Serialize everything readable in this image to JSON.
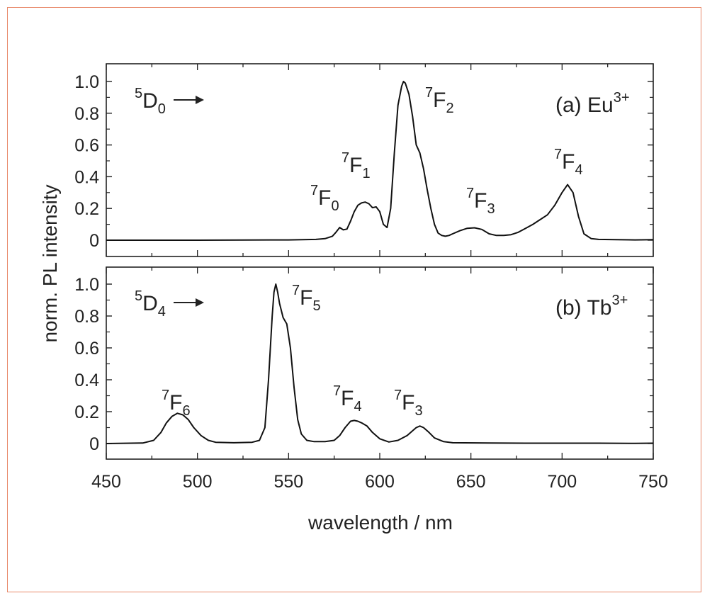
{
  "colors": {
    "frame": "#e8896a",
    "line": "#111111"
  },
  "chart_data": {
    "type": "line",
    "xlabel": "wavelength / nm",
    "ylabel": "norm. PL intensity",
    "xlim": [
      450,
      750
    ],
    "x_ticks": [
      "450",
      "500",
      "550",
      "600",
      "650",
      "700",
      "750"
    ],
    "grid": false,
    "panels": [
      {
        "id": "a",
        "label": {
          "prefix": "(a) Eu",
          "sup": "3+"
        },
        "start": {
          "sup": "5",
          "base": "D",
          "sub": "0"
        },
        "ylim": [
          0,
          1.0
        ],
        "y_ticks": [
          "0",
          "0.2",
          "0.4",
          "0.6",
          "0.8",
          "1.0"
        ],
        "transitions": [
          {
            "sup": "7",
            "base": "F",
            "sub": "0",
            "x": 578,
            "y": 0.08
          },
          {
            "sup": "7",
            "base": "F",
            "sub": "1",
            "x": 592,
            "y": 0.24
          },
          {
            "sup": "7",
            "base": "F",
            "sub": "2",
            "x": 613,
            "y": 1.0
          },
          {
            "sup": "7",
            "base": "F",
            "sub": "3",
            "x": 653,
            "y": 0.08
          },
          {
            "sup": "7",
            "base": "F",
            "sub": "4",
            "x": 703,
            "y": 0.35
          }
        ],
        "series": [
          {
            "x": [
              450,
              500,
              550,
              565,
              570,
              574,
              576,
              578,
              580,
              582,
              584,
              586,
              588,
              590,
              592,
              594,
              596,
              598,
              600,
              602,
              604,
              606,
              608,
              610,
              612,
              613,
              614,
              616,
              618,
              620,
              622,
              624,
              626,
              628,
              630,
              632,
              634,
              636,
              638,
              640,
              644,
              648,
              652,
              656,
              660,
              664,
              668,
              672,
              676,
              680,
              684,
              688,
              692,
              696,
              700,
              703,
              706,
              709,
              712,
              716,
              720,
              730,
              740,
              750
            ],
            "y": [
              0,
              0,
              0.002,
              0.005,
              0.01,
              0.025,
              0.05,
              0.08,
              0.065,
              0.07,
              0.12,
              0.18,
              0.22,
              0.235,
              0.24,
              0.23,
              0.205,
              0.21,
              0.18,
              0.1,
              0.08,
              0.2,
              0.55,
              0.85,
              0.97,
              1.0,
              0.99,
              0.92,
              0.78,
              0.6,
              0.55,
              0.45,
              0.32,
              0.2,
              0.1,
              0.045,
              0.03,
              0.025,
              0.03,
              0.04,
              0.06,
              0.075,
              0.078,
              0.068,
              0.04,
              0.03,
              0.03,
              0.035,
              0.05,
              0.075,
              0.1,
              0.13,
              0.16,
              0.22,
              0.3,
              0.35,
              0.3,
              0.15,
              0.04,
              0.01,
              0.005,
              0.003,
              0.002,
              0.003
            ]
          }
        ]
      },
      {
        "id": "b",
        "label": {
          "prefix": "(b) Tb",
          "sup": "3+"
        },
        "start": {
          "sup": "5",
          "base": "D",
          "sub": "4"
        },
        "ylim": [
          0,
          1.0
        ],
        "y_ticks": [
          "0",
          "0.2",
          "0.4",
          "0.6",
          "0.8",
          "1.0"
        ],
        "transitions": [
          {
            "sup": "7",
            "base": "F",
            "sub": "6",
            "x": 489,
            "y": 0.19
          },
          {
            "sup": "7",
            "base": "F",
            "sub": "5",
            "x": 543,
            "y": 1.0
          },
          {
            "sup": "7",
            "base": "F",
            "sub": "4",
            "x": 586,
            "y": 0.14
          },
          {
            "sup": "7",
            "base": "F",
            "sub": "3",
            "x": 622,
            "y": 0.11
          }
        ],
        "series": [
          {
            "x": [
              450,
              470,
              476,
              480,
              483,
              486,
              489,
              492,
              495,
              498,
              502,
              506,
              510,
              520,
              530,
              534,
              537,
              539,
              541,
              542,
              543,
              544,
              545,
              547,
              549,
              551,
              553,
              555,
              557,
              560,
              564,
              570,
              575,
              578,
              581,
              584,
              586,
              588,
              590,
              593,
              596,
              600,
              605,
              610,
              615,
              618,
              620,
              622,
              624,
              627,
              630,
              635,
              640,
              660,
              680,
              700,
              720,
              740,
              750
            ],
            "y": [
              0,
              0.003,
              0.02,
              0.07,
              0.13,
              0.17,
              0.19,
              0.18,
              0.15,
              0.1,
              0.05,
              0.02,
              0.008,
              0.005,
              0.008,
              0.02,
              0.1,
              0.4,
              0.8,
              0.95,
              1.0,
              0.95,
              0.88,
              0.79,
              0.75,
              0.6,
              0.35,
              0.15,
              0.06,
              0.02,
              0.012,
              0.012,
              0.02,
              0.05,
              0.1,
              0.14,
              0.145,
              0.14,
              0.13,
              0.11,
              0.07,
              0.03,
              0.01,
              0.02,
              0.05,
              0.08,
              0.1,
              0.11,
              0.1,
              0.07,
              0.035,
              0.012,
              0.005,
              0.003,
              0.002,
              0.002,
              0.002,
              0.001,
              0.002
            ]
          }
        ]
      }
    ]
  }
}
